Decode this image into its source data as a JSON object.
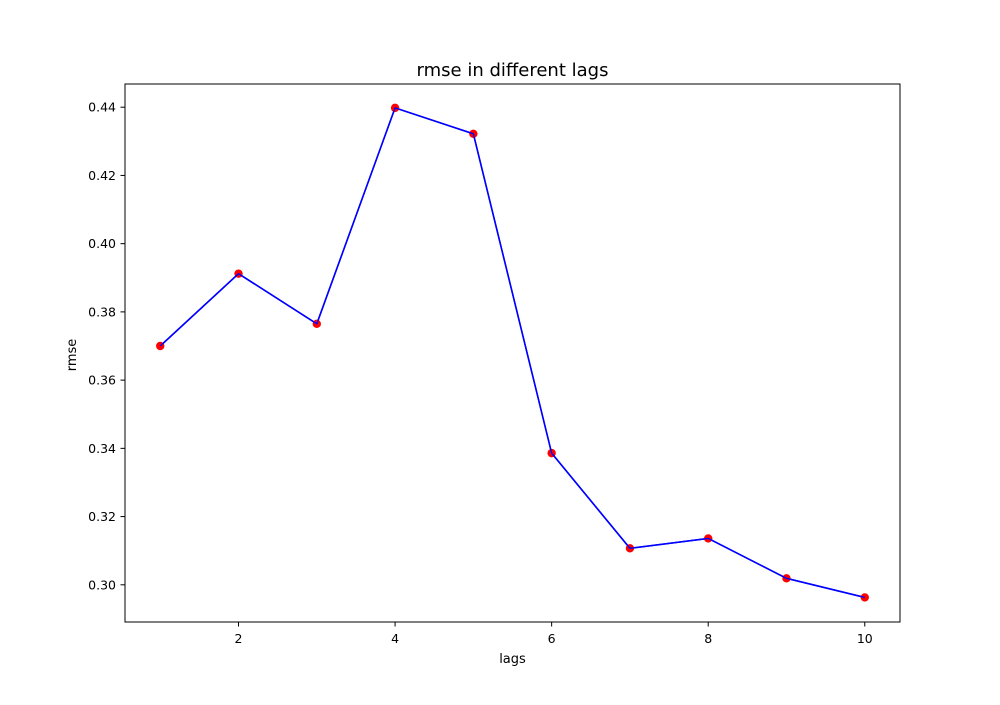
{
  "chart_data": {
    "type": "line",
    "title": "rmse in different lags",
    "xlabel": "lags",
    "ylabel": "rmse",
    "x": [
      1,
      2,
      3,
      4,
      5,
      6,
      7,
      8,
      9,
      10
    ],
    "series": [
      {
        "values": [
          0.37,
          0.3912,
          0.3765,
          0.4398,
          0.4322,
          0.3386,
          0.3107,
          0.3136,
          0.3019,
          0.2963
        ],
        "line_color": "#0000ff",
        "marker_color": "#ff0000"
      }
    ],
    "xlim": [
      0.55,
      10.45
    ],
    "ylim": [
      0.2891,
      0.4468
    ],
    "x_ticks": [
      2,
      4,
      6,
      8,
      10
    ],
    "x_tick_labels": [
      "2",
      "4",
      "6",
      "8",
      "10"
    ],
    "y_ticks": [
      0.3,
      0.32,
      0.34,
      0.36,
      0.38,
      0.4,
      0.42,
      0.44
    ],
    "y_tick_labels": [
      "0.30",
      "0.32",
      "0.34",
      "0.36",
      "0.38",
      "0.40",
      "0.42",
      "0.44"
    ],
    "grid": false,
    "legend": "none"
  }
}
